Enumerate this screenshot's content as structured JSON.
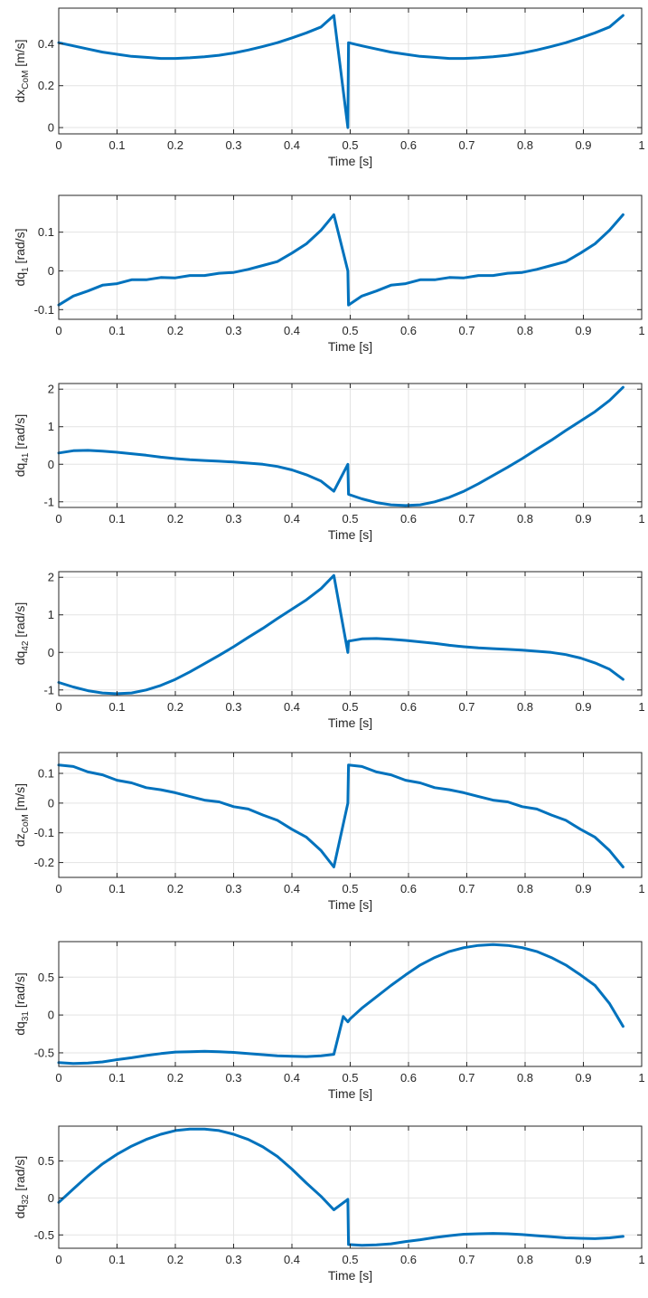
{
  "chart_data": [
    {
      "type": "line",
      "ylabel": {
        "base": "dx",
        "sub": "CoM",
        "unit": " [m/s]"
      },
      "xlabel": "Time [s]",
      "xlim": [
        0,
        1
      ],
      "ylim": [
        -0.03,
        0.57
      ],
      "xticks": [
        0,
        0.1,
        0.2,
        0.3,
        0.4,
        0.5,
        0.6,
        0.7,
        0.8,
        0.9,
        1
      ],
      "xticklabels": [
        "0",
        "0.1",
        "0.2",
        "0.3",
        "0.4",
        "0.5",
        "0.6",
        "0.7",
        "0.8",
        "0.9",
        "1"
      ],
      "yticks": [
        0,
        0.2,
        0.4
      ],
      "yticklabels": [
        "0",
        "0.2",
        "0.4"
      ],
      "grid": true,
      "color": "#0072BD",
      "x": [
        0,
        0.025,
        0.05,
        0.075,
        0.1,
        0.125,
        0.15,
        0.175,
        0.2,
        0.225,
        0.25,
        0.275,
        0.3,
        0.325,
        0.35,
        0.375,
        0.4,
        0.425,
        0.45,
        0.472,
        0.496,
        0.497,
        0.52,
        0.545,
        0.57,
        0.595,
        0.62,
        0.645,
        0.67,
        0.695,
        0.72,
        0.745,
        0.77,
        0.795,
        0.82,
        0.845,
        0.87,
        0.895,
        0.92,
        0.945,
        0.968
      ],
      "y": [
        0.405,
        0.39,
        0.375,
        0.36,
        0.35,
        0.34,
        0.335,
        0.33,
        0.33,
        0.333,
        0.338,
        0.345,
        0.356,
        0.37,
        0.387,
        0.405,
        0.428,
        0.452,
        0.48,
        0.535,
        0.0,
        0.405,
        0.39,
        0.375,
        0.36,
        0.35,
        0.34,
        0.335,
        0.33,
        0.33,
        0.333,
        0.338,
        0.345,
        0.356,
        0.37,
        0.387,
        0.405,
        0.428,
        0.452,
        0.48,
        0.535
      ]
    },
    {
      "type": "line",
      "ylabel": {
        "base": "dq",
        "sub": "1",
        "unit": " [rad/s]"
      },
      "xlabel": "Time [s]",
      "xlim": [
        0,
        1
      ],
      "ylim": [
        -0.125,
        0.195
      ],
      "xticks": [
        0,
        0.1,
        0.2,
        0.3,
        0.4,
        0.5,
        0.6,
        0.7,
        0.8,
        0.9,
        1
      ],
      "xticklabels": [
        "0",
        "0.1",
        "0.2",
        "0.3",
        "0.4",
        "0.5",
        "0.6",
        "0.7",
        "0.8",
        "0.9",
        "1"
      ],
      "yticks": [
        -0.1,
        0,
        0.1
      ],
      "yticklabels": [
        "-0.1",
        "0",
        "0.1"
      ],
      "grid": true,
      "color": "#0072BD",
      "x": [
        0,
        0.025,
        0.05,
        0.075,
        0.1,
        0.125,
        0.15,
        0.175,
        0.2,
        0.225,
        0.25,
        0.275,
        0.3,
        0.325,
        0.35,
        0.375,
        0.4,
        0.425,
        0.45,
        0.472,
        0.496,
        0.497,
        0.52,
        0.545,
        0.57,
        0.595,
        0.62,
        0.645,
        0.67,
        0.695,
        0.72,
        0.745,
        0.77,
        0.795,
        0.82,
        0.845,
        0.87,
        0.895,
        0.92,
        0.945,
        0.968
      ],
      "y": [
        -0.088,
        -0.065,
        -0.052,
        -0.037,
        -0.033,
        -0.023,
        -0.023,
        -0.017,
        -0.018,
        -0.012,
        -0.012,
        -0.006,
        -0.004,
        0.004,
        0.014,
        0.024,
        0.046,
        0.07,
        0.105,
        0.145,
        0.0,
        -0.088,
        -0.065,
        -0.052,
        -0.037,
        -0.033,
        -0.023,
        -0.023,
        -0.017,
        -0.018,
        -0.012,
        -0.012,
        -0.006,
        -0.004,
        0.004,
        0.014,
        0.024,
        0.046,
        0.07,
        0.105,
        0.145
      ]
    },
    {
      "type": "line",
      "ylabel": {
        "base": "dq",
        "sub": "41",
        "unit": " [rad/s]"
      },
      "xlabel": "Time [s]",
      "xlim": [
        0,
        1
      ],
      "ylim": [
        -1.15,
        2.15
      ],
      "xticks": [
        0,
        0.1,
        0.2,
        0.3,
        0.4,
        0.5,
        0.6,
        0.7,
        0.8,
        0.9,
        1
      ],
      "xticklabels": [
        "0",
        "0.1",
        "0.2",
        "0.3",
        "0.4",
        "0.5",
        "0.6",
        "0.7",
        "0.8",
        "0.9",
        "1"
      ],
      "yticks": [
        -1,
        0,
        1,
        2
      ],
      "yticklabels": [
        "-1",
        "0",
        "1",
        "2"
      ],
      "grid": true,
      "color": "#0072BD",
      "x": [
        0,
        0.025,
        0.05,
        0.075,
        0.1,
        0.125,
        0.15,
        0.175,
        0.2,
        0.225,
        0.25,
        0.275,
        0.3,
        0.325,
        0.35,
        0.375,
        0.4,
        0.425,
        0.45,
        0.472,
        0.496,
        0.497,
        0.52,
        0.545,
        0.57,
        0.595,
        0.62,
        0.645,
        0.67,
        0.695,
        0.72,
        0.745,
        0.77,
        0.795,
        0.82,
        0.845,
        0.87,
        0.895,
        0.92,
        0.945,
        0.968
      ],
      "y": [
        0.3,
        0.36,
        0.37,
        0.35,
        0.32,
        0.28,
        0.24,
        0.19,
        0.15,
        0.12,
        0.1,
        0.08,
        0.06,
        0.03,
        0.0,
        -0.06,
        -0.15,
        -0.28,
        -0.45,
        -0.72,
        0.0,
        -0.8,
        -0.92,
        -1.02,
        -1.08,
        -1.1,
        -1.08,
        -1.0,
        -0.88,
        -0.72,
        -0.52,
        -0.3,
        -0.08,
        0.15,
        0.4,
        0.64,
        0.9,
        1.15,
        1.4,
        1.7,
        2.05
      ]
    },
    {
      "type": "line",
      "ylabel": {
        "base": "dq",
        "sub": "42",
        "unit": " [rad/s]"
      },
      "xlabel": "Time [s]",
      "xlim": [
        0,
        1
      ],
      "ylim": [
        -1.15,
        2.15
      ],
      "xticks": [
        0,
        0.1,
        0.2,
        0.3,
        0.4,
        0.5,
        0.6,
        0.7,
        0.8,
        0.9,
        1
      ],
      "xticklabels": [
        "0",
        "0.1",
        "0.2",
        "0.3",
        "0.4",
        "0.5",
        "0.6",
        "0.7",
        "0.8",
        "0.9",
        "1"
      ],
      "yticks": [
        -1,
        0,
        1,
        2
      ],
      "yticklabels": [
        "-1",
        "0",
        "1",
        "2"
      ],
      "grid": true,
      "color": "#0072BD",
      "x": [
        0,
        0.025,
        0.05,
        0.075,
        0.1,
        0.125,
        0.15,
        0.175,
        0.2,
        0.225,
        0.25,
        0.275,
        0.3,
        0.325,
        0.35,
        0.375,
        0.4,
        0.425,
        0.45,
        0.472,
        0.496,
        0.497,
        0.52,
        0.545,
        0.57,
        0.595,
        0.62,
        0.645,
        0.67,
        0.695,
        0.72,
        0.745,
        0.77,
        0.795,
        0.82,
        0.845,
        0.87,
        0.895,
        0.92,
        0.945,
        0.968
      ],
      "y": [
        -0.8,
        -0.92,
        -1.02,
        -1.08,
        -1.1,
        -1.08,
        -1.0,
        -0.88,
        -0.72,
        -0.52,
        -0.3,
        -0.08,
        0.15,
        0.4,
        0.64,
        0.9,
        1.15,
        1.4,
        1.7,
        2.05,
        0.0,
        0.3,
        0.36,
        0.37,
        0.35,
        0.32,
        0.28,
        0.24,
        0.19,
        0.15,
        0.12,
        0.1,
        0.08,
        0.06,
        0.03,
        0.0,
        -0.06,
        -0.15,
        -0.28,
        -0.45,
        -0.72
      ]
    },
    {
      "type": "line",
      "ylabel": {
        "base": "dz",
        "sub": "CoM",
        "unit": " [m/s]"
      },
      "xlabel": "Time [s]",
      "xlim": [
        0,
        1
      ],
      "ylim": [
        -0.25,
        0.17
      ],
      "xticks": [
        0,
        0.1,
        0.2,
        0.3,
        0.4,
        0.5,
        0.6,
        0.7,
        0.8,
        0.9,
        1
      ],
      "xticklabels": [
        "0",
        "0.1",
        "0.2",
        "0.3",
        "0.4",
        "0.5",
        "0.6",
        "0.7",
        "0.8",
        "0.9",
        "1"
      ],
      "yticks": [
        -0.2,
        -0.1,
        0,
        0.1
      ],
      "yticklabels": [
        "-0.2",
        "-0.1",
        "0",
        "0.1"
      ],
      "grid": true,
      "color": "#0072BD",
      "x": [
        0,
        0.025,
        0.05,
        0.075,
        0.1,
        0.125,
        0.15,
        0.175,
        0.2,
        0.225,
        0.25,
        0.275,
        0.3,
        0.325,
        0.35,
        0.375,
        0.4,
        0.425,
        0.45,
        0.472,
        0.496,
        0.497,
        0.52,
        0.545,
        0.57,
        0.595,
        0.62,
        0.645,
        0.67,
        0.695,
        0.72,
        0.745,
        0.77,
        0.795,
        0.82,
        0.845,
        0.87,
        0.895,
        0.92,
        0.945,
        0.968
      ],
      "y": [
        0.128,
        0.123,
        0.105,
        0.095,
        0.077,
        0.068,
        0.052,
        0.045,
        0.035,
        0.022,
        0.01,
        0.004,
        -0.012,
        -0.02,
        -0.04,
        -0.058,
        -0.088,
        -0.115,
        -0.16,
        -0.215,
        0.0,
        0.128,
        0.123,
        0.105,
        0.095,
        0.077,
        0.068,
        0.052,
        0.045,
        0.035,
        0.022,
        0.01,
        0.004,
        -0.012,
        -0.02,
        -0.04,
        -0.058,
        -0.088,
        -0.115,
        -0.16,
        -0.215
      ]
    },
    {
      "type": "line",
      "ylabel": {
        "base": "dq",
        "sub": "31",
        "unit": " [rad/s]"
      },
      "xlabel": "Time [s]",
      "xlim": [
        0,
        1
      ],
      "ylim": [
        -0.68,
        0.97
      ],
      "xticks": [
        0,
        0.1,
        0.2,
        0.3,
        0.4,
        0.5,
        0.6,
        0.7,
        0.8,
        0.9,
        1
      ],
      "xticklabels": [
        "0",
        "0.1",
        "0.2",
        "0.3",
        "0.4",
        "0.5",
        "0.6",
        "0.7",
        "0.8",
        "0.9",
        "1"
      ],
      "yticks": [
        -0.5,
        0,
        0.5
      ],
      "yticklabels": [
        "-0.5",
        "0",
        "0.5"
      ],
      "grid": true,
      "color": "#0072BD",
      "x": [
        0,
        0.025,
        0.05,
        0.075,
        0.1,
        0.125,
        0.15,
        0.175,
        0.2,
        0.225,
        0.25,
        0.275,
        0.3,
        0.325,
        0.35,
        0.375,
        0.4,
        0.425,
        0.45,
        0.472,
        0.488,
        0.496,
        0.5,
        0.52,
        0.545,
        0.57,
        0.595,
        0.62,
        0.645,
        0.67,
        0.695,
        0.72,
        0.745,
        0.77,
        0.795,
        0.82,
        0.845,
        0.87,
        0.895,
        0.92,
        0.945,
        0.968
      ],
      "y": [
        -0.63,
        -0.64,
        -0.635,
        -0.62,
        -0.59,
        -0.565,
        -0.535,
        -0.51,
        -0.49,
        -0.485,
        -0.48,
        -0.485,
        -0.495,
        -0.51,
        -0.525,
        -0.54,
        -0.545,
        -0.55,
        -0.54,
        -0.52,
        -0.02,
        -0.09,
        -0.05,
        0.09,
        0.24,
        0.39,
        0.53,
        0.66,
        0.76,
        0.84,
        0.89,
        0.92,
        0.93,
        0.92,
        0.89,
        0.84,
        0.76,
        0.66,
        0.53,
        0.39,
        0.15,
        -0.15
      ]
    },
    {
      "type": "line",
      "ylabel": {
        "base": "dq",
        "sub": "32",
        "unit": " [rad/s]"
      },
      "xlabel": "Time [s]",
      "xlim": [
        0,
        1
      ],
      "ylim": [
        -0.68,
        0.97
      ],
      "xticks": [
        0,
        0.1,
        0.2,
        0.3,
        0.4,
        0.5,
        0.6,
        0.7,
        0.8,
        0.9,
        1
      ],
      "xticklabels": [
        "0",
        "0.1",
        "0.2",
        "0.3",
        "0.4",
        "0.5",
        "0.6",
        "0.7",
        "0.8",
        "0.9",
        "1"
      ],
      "yticks": [
        -0.5,
        0,
        0.5
      ],
      "yticklabels": [
        "-0.5",
        "0",
        "0.5"
      ],
      "grid": true,
      "color": "#0072BD",
      "x": [
        0,
        0.025,
        0.05,
        0.075,
        0.1,
        0.125,
        0.15,
        0.175,
        0.2,
        0.225,
        0.25,
        0.275,
        0.3,
        0.325,
        0.35,
        0.375,
        0.4,
        0.425,
        0.45,
        0.472,
        0.496,
        0.497,
        0.52,
        0.545,
        0.57,
        0.595,
        0.62,
        0.645,
        0.67,
        0.695,
        0.72,
        0.745,
        0.77,
        0.795,
        0.82,
        0.845,
        0.87,
        0.895,
        0.92,
        0.945,
        0.968
      ],
      "y": [
        -0.06,
        0.12,
        0.3,
        0.46,
        0.59,
        0.7,
        0.79,
        0.86,
        0.91,
        0.93,
        0.93,
        0.91,
        0.86,
        0.79,
        0.69,
        0.56,
        0.39,
        0.2,
        0.02,
        -0.16,
        -0.02,
        -0.63,
        -0.64,
        -0.635,
        -0.62,
        -0.59,
        -0.565,
        -0.535,
        -0.51,
        -0.49,
        -0.485,
        -0.48,
        -0.485,
        -0.495,
        -0.51,
        -0.525,
        -0.54,
        -0.545,
        -0.55,
        -0.54,
        -0.52
      ]
    }
  ]
}
